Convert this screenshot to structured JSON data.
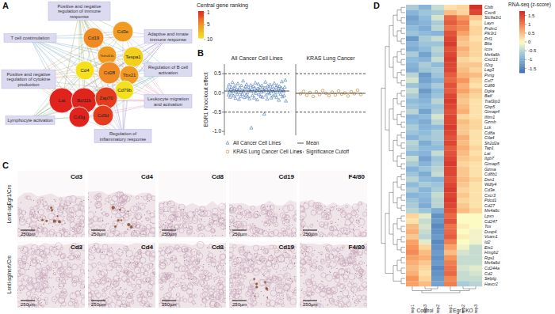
{
  "figure": {
    "panel_labels": [
      "A",
      "B",
      "C",
      "D"
    ],
    "network": {
      "legend": {
        "title": "Central gene ranking",
        "ticks": [
          1,
          5,
          10
        ],
        "colors": [
          "#e0231c",
          "#f08a24",
          "#f4e01c"
        ]
      },
      "categories": [
        "Positive and negative regulation of immune response",
        "T cell costimulation",
        "Adaptive and innate immune response",
        "Positive and negative regulation of cytokine production",
        "Regulation of B cell activation",
        "Leukocyte migration and activation",
        "Lymphocyte activation",
        "Regulation of inflammatory response"
      ],
      "nodes": [
        {
          "label": "Cd19",
          "rank": 5
        },
        {
          "label": "Cd3e",
          "rank": 6
        },
        {
          "label": "Tnfrsf13c",
          "rank": 6
        },
        {
          "label": "Tespa1",
          "rank": 9
        },
        {
          "label": "Cd4",
          "rank": 10
        },
        {
          "label": "Cd28",
          "rank": 5
        },
        {
          "label": "Tbx21",
          "rank": 6
        },
        {
          "label": "Cd79b",
          "rank": 10
        },
        {
          "label": "Lat",
          "rank": 1
        },
        {
          "label": "Bcl11b",
          "rank": 1
        },
        {
          "label": "Zap70",
          "rank": 2
        },
        {
          "label": "Cd3g",
          "rank": 1
        },
        {
          "label": "Cd3d",
          "rank": 2
        }
      ]
    },
    "histology": {
      "columns": [
        "Cd3",
        "Cd4",
        "Cd8",
        "Cd19",
        "F4/80"
      ],
      "rows": [
        "Lenti-sgEgr1/Cre",
        "Lenti-sgInert/Cre"
      ],
      "scale_bar": "250µm"
    }
  },
  "chart_data": [
    {
      "type": "scatter",
      "title": "All Cancer Cell Lines",
      "y_label": "EGR1 Knockout effect",
      "ylim": [
        -1.1,
        0.75
      ],
      "yticks": [
        {
          "value": -1,
          "label": "-1.0"
        },
        -0.5,
        {
          "value": 0,
          "label": "0.0"
        },
        0.5
      ],
      "tick_labels": "y",
      "series": [
        {
          "name": "All Cancer Cell Lines",
          "color": "#3d6fb5",
          "marker": "triangle",
          "values": [
            0.12,
            -0.05,
            0.21,
            0.03,
            -0.11,
            0.08,
            0.15,
            -0.02,
            0.27,
            0.05,
            -0.08,
            0.11,
            0.18,
            -0.14,
            0.02,
            0.09,
            -0.04,
            0.24,
            0.06,
            -0.17,
            0.13,
            0.01,
            -0.09,
            0.19,
            0.07,
            -0.03,
            0.31,
            0.04,
            -0.12,
            0.1,
            0.16,
            -0.06,
            0.22,
            0.0,
            -0.1,
            0.14,
            0.08,
            -0.15,
            0.05,
            0.2,
            -0.91,
            0.09,
            -0.07,
            0.17,
            0.03,
            -0.13,
            0.12,
            0.26,
            -0.01,
            0.06,
            -0.18,
            0.11,
            0.23,
            -0.04,
            0.07,
            0.15,
            -0.09,
            0.02,
            0.19,
            -0.11,
            0.1,
            0.04,
            -0.55,
            0.13,
            0.28,
            -0.06,
            0.08,
            -0.16,
            0.18,
            0.01,
            0.12,
            -0.02,
            0.21,
            0.05,
            -0.13,
            0.09,
            0.16,
            -0.08,
            0.03,
            0.25,
            0.07,
            -0.05,
            0.14,
            -0.12,
            0.2,
            0.02,
            0.11,
            -0.19,
            0.17,
            0.06,
            -0.03,
            0.13,
            0.29,
            -0.1,
            0.08,
            0.04,
            -0.07,
            0.15,
            0.33,
            -0.21
          ]
        },
        {
          "name": "Mean",
          "type": "hline",
          "line_style": "solid",
          "color": "#222222",
          "values": [
            0.05
          ]
        },
        {
          "name": "Significance Cutoff",
          "type": "hline",
          "line_style": "dashed",
          "color": "#222222",
          "values": [
            -0.5,
            0.5
          ]
        }
      ]
    },
    {
      "type": "scatter",
      "title": "KRAS Lung Cancer",
      "ylim": [
        -1.1,
        0.75
      ],
      "tick_labels": false,
      "series": [
        {
          "name": "KRAS Lung Cancer Cell Lines",
          "color": "#c9873a",
          "marker": "circle",
          "values": [
            -0.02,
            0.04,
            -0.06,
            0.01,
            -0.09,
            0.03,
            -0.04,
            0.06,
            -0.01,
            -0.07,
            0.02,
            -0.05,
            0.05,
            -0.03,
            0.0,
            -0.08,
            0.03,
            -0.02,
            0.07,
            -0.04
          ]
        },
        {
          "type": "hline",
          "line_style": "solid",
          "color": "#222222",
          "values": [
            -0.01
          ]
        },
        {
          "type": "hline",
          "line_style": "dashed",
          "color": "#222222",
          "values": [
            -0.5,
            0.5
          ]
        }
      ]
    },
    {
      "type": "heatmap",
      "columns": [
        "rep1",
        "rep3",
        "rep2",
        "rep1",
        "rep2",
        "rep3"
      ],
      "column_groups": [
        "Control",
        "Egr1-KO"
      ],
      "rows": [
        "Cblb",
        "Cxcr6",
        "Slc9a3r1",
        "Layn",
        "Prdm1",
        "Pik3r1",
        "Prf1",
        "Btla",
        "Icos",
        "Ms4a6b",
        "Cxcl13",
        "Il2rg",
        "Lag3",
        "Pvrig",
        "Ccl7",
        "Cd86",
        "Dgka",
        "Batf",
        "Traf3ip3",
        "Gbp5",
        "Gimap4",
        "Ifitm1",
        "Gzmb",
        "Lck",
        "Cd8a",
        "Ctla4",
        "Sh2d2a",
        "Tap1",
        "Lat",
        "Itgb7",
        "Gimap5",
        "Gzma",
        "Cd8b1",
        "Dsn1",
        "Wdfy4",
        "Cd3e",
        "Cxcr3",
        "Pdcd1",
        "Cd27",
        "Ms4a6c",
        "Lpxn",
        "Cd247",
        "Tox",
        "Dusp4",
        "Vcam1",
        "Id2",
        "Ets1",
        "Hmgb2",
        "Rgs1",
        "Ms4a6d",
        "Cd244a",
        "Cd2",
        "Selplg",
        "Havcr2"
      ],
      "values": [
        [
          -0.6,
          -0.9,
          -0.4,
          0.2,
          0.3,
          1.7
        ],
        [
          -0.9,
          -0.7,
          -0.6,
          0.5,
          0.3,
          1.5
        ],
        [
          -1.1,
          -0.8,
          -0.3,
          1.2,
          0.8,
          0.4
        ],
        [
          -1.0,
          -0.9,
          -0.6,
          1.3,
          1.0,
          0.2
        ],
        [
          -0.8,
          -1.0,
          -0.5,
          1.1,
          0.9,
          0.3
        ],
        [
          -0.7,
          -0.8,
          -0.9,
          1.4,
          0.7,
          0.3
        ],
        [
          -1.2,
          -0.6,
          -0.4,
          1.5,
          0.5,
          0.2
        ],
        [
          -0.9,
          -0.7,
          -0.7,
          1.6,
          0.4,
          0.3
        ],
        [
          -1.0,
          -0.8,
          -0.5,
          1.4,
          0.6,
          0.3
        ],
        [
          -0.6,
          -1.1,
          -0.6,
          1.5,
          0.5,
          0.3
        ],
        [
          -0.8,
          -0.9,
          -0.4,
          1.6,
          0.3,
          0.2
        ],
        [
          -0.9,
          -0.6,
          -0.8,
          1.5,
          0.4,
          0.4
        ],
        [
          -1.0,
          -0.7,
          -0.6,
          1.5,
          0.5,
          0.3
        ],
        [
          -0.5,
          -1.2,
          -0.7,
          1.3,
          0.6,
          0.5
        ],
        [
          -0.3,
          -1.1,
          -0.9,
          1.2,
          0.8,
          0.3
        ],
        [
          -0.7,
          -0.9,
          -0.6,
          1.4,
          0.6,
          0.2
        ],
        [
          -0.4,
          -1.2,
          -0.8,
          1.3,
          0.7,
          0.4
        ],
        [
          -0.6,
          -1.0,
          -0.7,
          1.5,
          0.5,
          0.3
        ],
        [
          -0.8,
          -0.9,
          -0.5,
          1.6,
          0.4,
          0.2
        ],
        [
          -0.7,
          -0.8,
          -0.7,
          1.5,
          0.5,
          0.2
        ],
        [
          -0.5,
          -1.1,
          -0.6,
          1.4,
          0.6,
          0.2
        ],
        [
          -0.9,
          -0.8,
          -0.3,
          1.5,
          0.3,
          0.2
        ],
        [
          -0.8,
          -1.0,
          -0.5,
          1.5,
          0.5,
          0.3
        ],
        [
          -0.6,
          -0.9,
          -0.8,
          1.6,
          0.4,
          0.3
        ],
        [
          -0.7,
          -0.8,
          -0.6,
          1.5,
          0.4,
          0.2
        ],
        [
          -0.9,
          -0.7,
          -0.6,
          1.4,
          0.6,
          0.2
        ],
        [
          -0.5,
          -1.0,
          -0.7,
          1.5,
          0.5,
          0.2
        ],
        [
          -0.6,
          -0.8,
          -0.8,
          1.3,
          0.6,
          0.3
        ],
        [
          -0.8,
          -0.9,
          -0.4,
          1.4,
          0.5,
          0.2
        ],
        [
          -0.4,
          -1.1,
          -0.7,
          1.5,
          0.4,
          0.3
        ],
        [
          -0.6,
          -0.9,
          -0.6,
          1.6,
          0.3,
          0.2
        ],
        [
          -0.9,
          -0.7,
          -0.5,
          1.5,
          0.4,
          0.2
        ],
        [
          -0.7,
          -1.0,
          -0.4,
          1.5,
          0.4,
          0.2
        ],
        [
          -0.5,
          -0.8,
          -0.9,
          1.4,
          0.5,
          0.3
        ],
        [
          -0.8,
          -0.6,
          -0.7,
          1.5,
          0.4,
          0.2
        ],
        [
          -0.6,
          -0.9,
          -0.6,
          1.6,
          0.3,
          0.2
        ],
        [
          -0.9,
          -0.8,
          -0.4,
          1.5,
          0.4,
          0.2
        ],
        [
          -0.7,
          -0.9,
          -0.5,
          1.6,
          0.3,
          0.2
        ],
        [
          -0.6,
          -1.0,
          -0.5,
          1.5,
          0.4,
          0.2
        ],
        [
          -0.5,
          -0.7,
          -1.0,
          1.4,
          0.5,
          0.3
        ],
        [
          0.3,
          -0.2,
          -1.3,
          1.2,
          0.0,
          0.0
        ],
        [
          0.2,
          -0.4,
          -1.2,
          1.4,
          0.0,
          0.0
        ],
        [
          0.5,
          -0.3,
          -1.4,
          1.1,
          0.1,
          0.0
        ],
        [
          0.6,
          -0.4,
          -1.3,
          1.2,
          0.0,
          -0.1
        ],
        [
          0.4,
          -0.5,
          -1.2,
          1.3,
          0.1,
          -0.1
        ],
        [
          0.7,
          -0.2,
          -1.4,
          1.0,
          0.0,
          -0.1
        ],
        [
          0.8,
          0.3,
          -1.3,
          0.7,
          -0.1,
          -0.4
        ],
        [
          0.9,
          0.5,
          -1.2,
          0.5,
          -0.3,
          -0.4
        ],
        [
          0.7,
          0.6,
          -1.3,
          0.8,
          -0.4,
          -0.4
        ],
        [
          0.6,
          0.4,
          -1.2,
          1.0,
          -0.4,
          -0.4
        ],
        [
          0.5,
          0.3,
          -1.4,
          1.1,
          -0.3,
          -0.2
        ],
        [
          0.6,
          0.2,
          -1.3,
          1.2,
          -0.4,
          -0.3
        ],
        [
          0.8,
          0.3,
          -1.2,
          0.9,
          -0.4,
          -0.4
        ],
        [
          0.7,
          0.5,
          -1.1,
          1.0,
          -0.6,
          -0.5
        ]
      ],
      "colorbar": {
        "title": "RNA-seq (z-score)",
        "range": [
          -1.75,
          1.75
        ],
        "ticks": [
          1.5,
          1,
          0.5,
          0,
          -0.5,
          -1,
          -1.5
        ]
      }
    }
  ]
}
